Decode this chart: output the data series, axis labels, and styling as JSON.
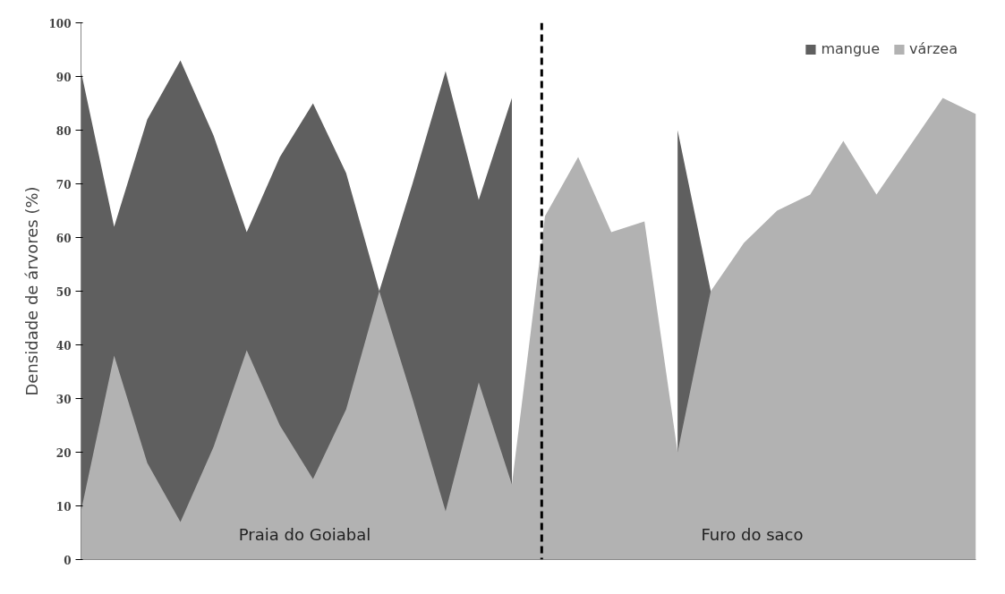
{
  "chart_data": {
    "type": "area",
    "ylabel": "Densidade de árvores (%)",
    "categories": [
      null,
      null,
      null,
      null,
      null,
      null,
      null,
      null,
      null,
      null,
      null,
      null,
      null,
      null,
      null,
      null,
      null,
      null,
      null,
      null,
      null,
      null,
      null,
      null,
      null,
      null,
      null,
      null
    ],
    "series": [
      {
        "name": "mangue",
        "color": "#5f5f5f",
        "values": [
          91,
          62,
          82,
          93,
          79,
          61,
          75,
          85,
          72,
          50,
          70,
          91,
          67,
          86,
          null,
          null,
          null,
          null,
          80,
          50,
          null,
          null,
          null,
          null,
          null,
          null,
          null,
          null
        ]
      },
      {
        "name": "várzea",
        "color": "#b2b2b2",
        "values": [
          9,
          38,
          18,
          7,
          21,
          39,
          25,
          15,
          28,
          50,
          30,
          9,
          33,
          14,
          64,
          75,
          61,
          63,
          20,
          50,
          59,
          65,
          68,
          78,
          68,
          77,
          86,
          83
        ]
      }
    ],
    "ylim": [
      0,
      100
    ],
    "yticks": [
      0,
      10,
      20,
      30,
      40,
      50,
      60,
      70,
      80,
      90,
      100
    ],
    "grid": false,
    "legend": "top right",
    "annotations": [
      "Praia do Goiabal",
      "Furo do saco"
    ]
  }
}
